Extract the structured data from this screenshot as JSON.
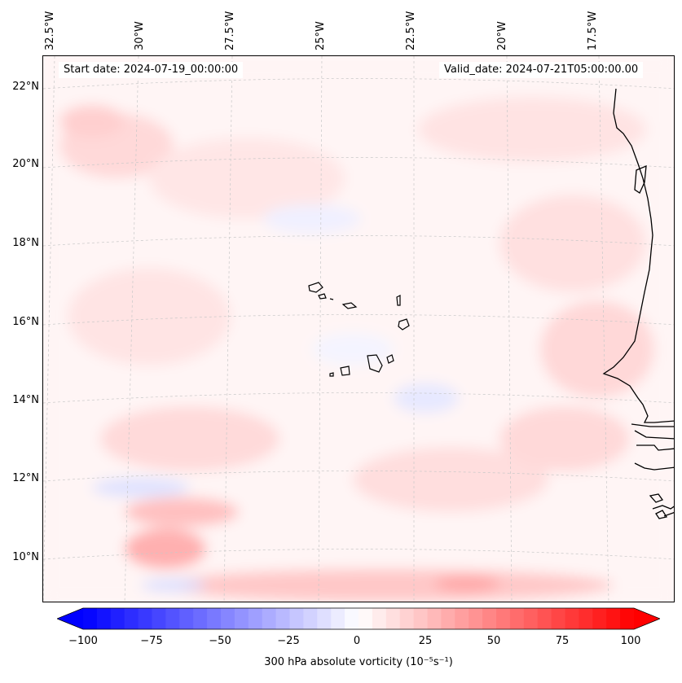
{
  "map": {
    "start_date": "Start date: 2024-07-19_00:00:00",
    "valid_date": "Valid_date: 2024-07-21T05:00:00.00",
    "lon_labels": [
      "32.5°W",
      "30°W",
      "27.5°W",
      "25°W",
      "22.5°W",
      "20°W",
      "17.5°W"
    ],
    "lat_labels": [
      "22°N",
      "20°N",
      "18°N",
      "16°N",
      "14°N",
      "12°N",
      "10°N"
    ],
    "gridlines": true,
    "colormap": "bwr",
    "colors": {
      "min": "#0000ff",
      "mid": "#ffffff",
      "max": "#ff0000",
      "coast": "#000000"
    }
  },
  "colorbar": {
    "ticks": [
      "−100",
      "−75",
      "−50",
      "−25",
      "0",
      "25",
      "50",
      "75",
      "100"
    ],
    "range": [
      -100,
      100
    ],
    "step": 5,
    "extend": "both",
    "label": "300 hPa absolute vorticity (10⁻⁵s⁻¹)"
  }
}
